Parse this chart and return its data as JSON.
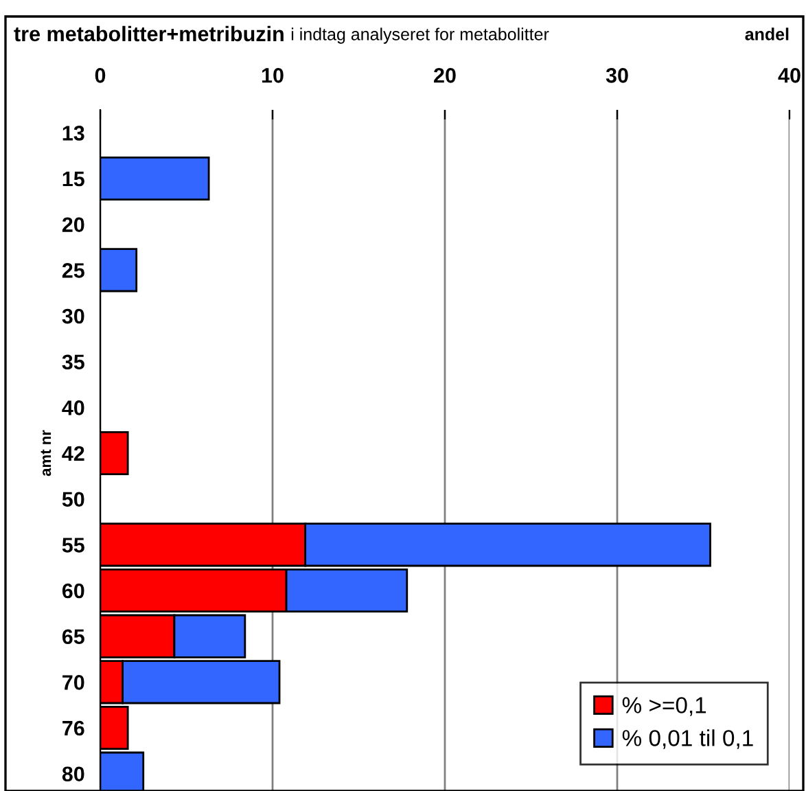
{
  "chart_data": {
    "type": "bar",
    "orientation": "horizontal",
    "stacked": true,
    "title": "tre metabolitter+metribuzin",
    "subtitle": "i indtag analyseret for metabolitter",
    "xlabel": "andel",
    "ylabel": "amt nr",
    "categories": [
      "13",
      "15",
      "20",
      "25",
      "30",
      "35",
      "40",
      "42",
      "50",
      "55",
      "60",
      "65",
      "70",
      "76",
      "80"
    ],
    "series": [
      {
        "name": "% >=0,1",
        "color": "#ff0000",
        "values": [
          null,
          null,
          null,
          null,
          null,
          null,
          null,
          1.6,
          null,
          11.9,
          10.8,
          4.3,
          1.3,
          1.6,
          null
        ]
      },
      {
        "name": "% 0,01 til 0,1",
        "color": "#3366ff",
        "values": [
          null,
          6.3,
          null,
          2.1,
          null,
          null,
          null,
          null,
          null,
          23.5,
          7.0,
          4.1,
          9.1,
          null,
          2.5
        ]
      }
    ],
    "xlim": [
      0,
      40
    ],
    "xticks": [
      0,
      10,
      20,
      30,
      40
    ],
    "grid": "x",
    "legend": "bottom right"
  }
}
